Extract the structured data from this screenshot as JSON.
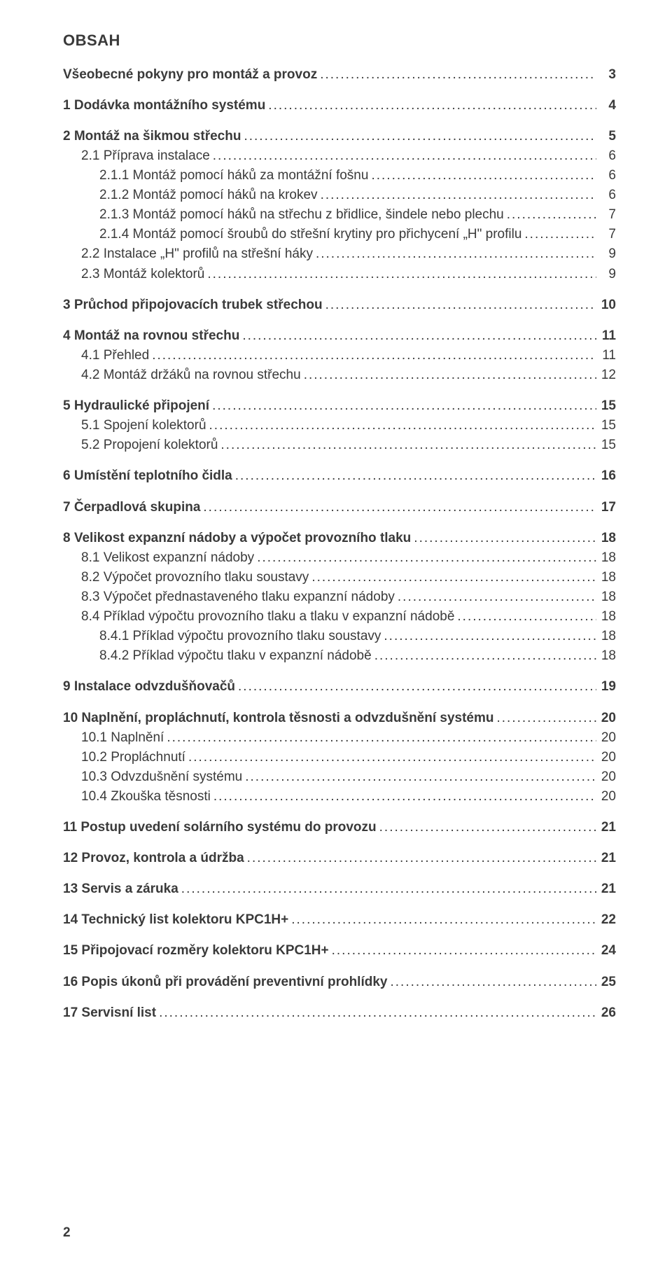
{
  "heading": "OBSAH",
  "footer_page_number": "2",
  "entries": [
    {
      "label": "Všeobecné pokyny pro montáž a provoz",
      "page": "3",
      "bold": true,
      "indent": 0,
      "group_start": true
    },
    {
      "label": "1 Dodávka montážního systému",
      "page": "4",
      "bold": true,
      "indent": 0,
      "group_start": true
    },
    {
      "label": "2 Montáž na šikmou střechu",
      "page": "5",
      "bold": true,
      "indent": 0,
      "group_start": true
    },
    {
      "label": "2.1 Příprava instalace",
      "page": "6",
      "bold": false,
      "indent": 1
    },
    {
      "label": "2.1.1 Montáž pomocí háků za montážní fošnu",
      "page": "6",
      "bold": false,
      "indent": 2
    },
    {
      "label": "2.1.2 Montáž pomocí háků na krokev",
      "page": "6",
      "bold": false,
      "indent": 2
    },
    {
      "label": "2.1.3 Montáž pomocí háků na střechu z břidlice, šindele nebo plechu",
      "page": "7",
      "bold": false,
      "indent": 2
    },
    {
      "label": "2.1.4 Montáž pomocí šroubů do střešní krytiny pro přichycení „H\" profilu",
      "page": "7",
      "bold": false,
      "indent": 2
    },
    {
      "label": "2.2 Instalace „H\" profilů na střešní háky",
      "page": "9",
      "bold": false,
      "indent": 1
    },
    {
      "label": "2.3 Montáž kolektorů",
      "page": "9",
      "bold": false,
      "indent": 1
    },
    {
      "label": "3 Průchod připojovacích trubek střechou",
      "page": "10",
      "bold": true,
      "indent": 0,
      "group_start": true
    },
    {
      "label": "4 Montáž na rovnou střechu",
      "page": "11",
      "bold": true,
      "indent": 0,
      "group_start": true
    },
    {
      "label": "4.1 Přehled",
      "page": "11",
      "bold": false,
      "indent": 1
    },
    {
      "label": "4.2 Montáž držáků na rovnou střechu",
      "page": "12",
      "bold": false,
      "indent": 1
    },
    {
      "label": "5 Hydraulické připojení",
      "page": "15",
      "bold": true,
      "indent": 0,
      "group_start": true
    },
    {
      "label": "5.1 Spojení kolektorů",
      "page": "15",
      "bold": false,
      "indent": 1
    },
    {
      "label": "5.2 Propojení kolektorů",
      "page": "15",
      "bold": false,
      "indent": 1
    },
    {
      "label": "6 Umístění teplotního čidla",
      "page": "16",
      "bold": true,
      "indent": 0,
      "group_start": true
    },
    {
      "label": "7 Čerpadlová skupina",
      "page": "17",
      "bold": true,
      "indent": 0,
      "group_start": true
    },
    {
      "label": "8 Velikost expanzní nádoby a výpočet provozního tlaku",
      "page": "18",
      "bold": true,
      "indent": 0,
      "group_start": true
    },
    {
      "label": "8.1 Velikost expanzní nádoby",
      "page": "18",
      "bold": false,
      "indent": 1
    },
    {
      "label": "8.2 Výpočet provozního tlaku soustavy",
      "page": "18",
      "bold": false,
      "indent": 1
    },
    {
      "label": "8.3 Výpočet přednastaveného tlaku expanzní nádoby",
      "page": "18",
      "bold": false,
      "indent": 1
    },
    {
      "label": "8.4 Příklad výpočtu provozního tlaku a tlaku v expanzní nádobě",
      "page": "18",
      "bold": false,
      "indent": 1
    },
    {
      "label": "8.4.1 Příklad výpočtu provozního tlaku soustavy",
      "page": "18",
      "bold": false,
      "indent": 2
    },
    {
      "label": "8.4.2 Příklad výpočtu tlaku v expanzní nádobě",
      "page": "18",
      "bold": false,
      "indent": 2
    },
    {
      "label": "9 Instalace odvzdušňovačů",
      "page": "19",
      "bold": true,
      "indent": 0,
      "group_start": true
    },
    {
      "label": "10 Naplnění, propláchnutí, kontrola těsnosti a odvzdušnění systému",
      "page": "20",
      "bold": true,
      "indent": 0,
      "group_start": true
    },
    {
      "label": "10.1 Naplnění",
      "page": "20",
      "bold": false,
      "indent": 1
    },
    {
      "label": "10.2 Propláchnutí",
      "page": "20",
      "bold": false,
      "indent": 1
    },
    {
      "label": "10.3 Odvzdušnění systému",
      "page": "20",
      "bold": false,
      "indent": 1
    },
    {
      "label": "10.4 Zkouška těsnosti",
      "page": "20",
      "bold": false,
      "indent": 1
    },
    {
      "label": "11 Postup uvedení solárního systému do provozu",
      "page": "21",
      "bold": true,
      "indent": 0,
      "group_start": true
    },
    {
      "label": "12 Provoz, kontrola a údržba",
      "page": "21",
      "bold": true,
      "indent": 0,
      "group_start": true
    },
    {
      "label": "13 Servis a záruka",
      "page": "21",
      "bold": true,
      "indent": 0,
      "group_start": true
    },
    {
      "label": "14 Technický list kolektoru KPC1H+",
      "page": "22",
      "bold": true,
      "indent": 0,
      "group_start": true
    },
    {
      "label": "15 Připojovací rozměry kolektoru KPC1H+",
      "page": "24",
      "bold": true,
      "indent": 0,
      "group_start": true
    },
    {
      "label": "16 Popis úkonů při provádění preventivní prohlídky",
      "page": "25",
      "bold": true,
      "indent": 0,
      "group_start": true
    },
    {
      "label": "17 Servisní list",
      "page": "26",
      "bold": true,
      "indent": 0,
      "group_start": true
    }
  ]
}
